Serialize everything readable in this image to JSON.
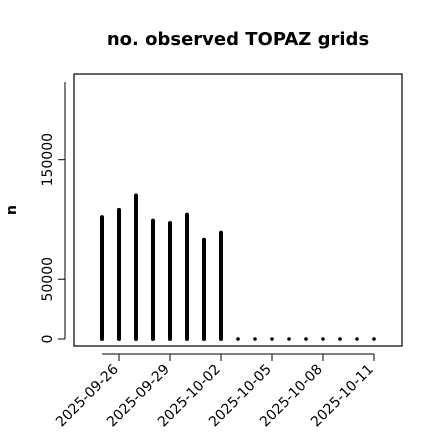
{
  "chart_data": {
    "type": "bar",
    "title": "no. observed TOPAZ grids",
    "xlabel": "",
    "ylabel": "n",
    "ylim": [
      0,
      215000
    ],
    "yticks": [
      0,
      50000,
      150000
    ],
    "ytick_labels": [
      "0",
      "50000",
      "150000"
    ],
    "x": [
      "2025-09-25",
      "2025-09-26",
      "2025-09-27",
      "2025-09-28",
      "2025-09-29",
      "2025-09-30",
      "2025-10-01",
      "2025-10-02",
      "2025-10-03",
      "2025-10-04",
      "2025-10-05",
      "2025-10-06",
      "2025-10-07",
      "2025-10-08",
      "2025-10-09",
      "2025-10-10",
      "2025-10-11"
    ],
    "values": [
      102000,
      108000,
      120000,
      99000,
      97000,
      104000,
      83000,
      89000,
      0,
      0,
      0,
      0,
      0,
      0,
      0,
      0,
      0
    ],
    "xtick_labels": [
      {
        "label": "2025-09-26",
        "index": 1,
        "color": "#000000"
      },
      {
        "label": "2025-09-29",
        "index": 4,
        "color": "#000000"
      },
      {
        "label": "2025-10-02",
        "index": 7,
        "color": "#228B22"
      },
      {
        "label": "2025-10-05",
        "index": 10,
        "color": "#000000"
      },
      {
        "label": "2025-10-08",
        "index": 13,
        "color": "#000000"
      },
      {
        "label": "2025-10-11",
        "index": 16,
        "color": "#000000"
      }
    ],
    "bar_color": "#000000",
    "grid": false,
    "legend": "none"
  }
}
